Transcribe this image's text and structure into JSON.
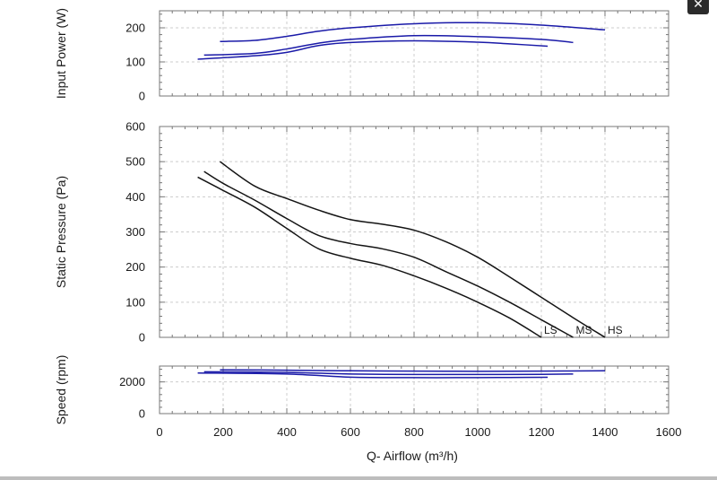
{
  "ui": {
    "close_symbol": "✕"
  },
  "colors": {
    "power_curve": "#1a1aa8",
    "pressure_curve": "#141414",
    "speed_curve": "#1a1aa8",
    "frame": "#777777",
    "grid": "#cccccc"
  },
  "chart_data": [
    {
      "id": "input-power",
      "type": "line",
      "xlabel": "",
      "ylabel": "Input Power (W)",
      "xlim": [
        0,
        1600
      ],
      "ylim": [
        0,
        250
      ],
      "yticks": [
        0,
        100,
        200
      ],
      "grid": true,
      "series": [
        {
          "name": "HS",
          "x": [
            190,
            300,
            400,
            500,
            600,
            800,
            1000,
            1200,
            1400
          ],
          "y": [
            160,
            163,
            175,
            190,
            200,
            212,
            215,
            208,
            194
          ]
        },
        {
          "name": "MS",
          "x": [
            140,
            300,
            400,
            500,
            600,
            800,
            1000,
            1200,
            1300
          ],
          "y": [
            120,
            125,
            138,
            155,
            166,
            177,
            174,
            166,
            157
          ]
        },
        {
          "name": "LS",
          "x": [
            120,
            300,
            400,
            500,
            600,
            800,
            1000,
            1100,
            1220
          ],
          "y": [
            108,
            118,
            128,
            148,
            157,
            162,
            158,
            153,
            146
          ]
        }
      ]
    },
    {
      "id": "static-pressure",
      "type": "line",
      "xlabel": "",
      "ylabel": "Static Pressure (Pa)",
      "xlim": [
        0,
        1600
      ],
      "ylim": [
        0,
        600
      ],
      "yticks": [
        0,
        100,
        200,
        300,
        400,
        500,
        600
      ],
      "grid": true,
      "series": [
        {
          "name": "HS",
          "x": [
            190,
            300,
            400,
            500,
            600,
            700,
            800,
            900,
            1000,
            1100,
            1200,
            1300,
            1400
          ],
          "y": [
            500,
            430,
            395,
            362,
            335,
            322,
            305,
            272,
            228,
            172,
            114,
            56,
            0
          ]
        },
        {
          "name": "MS",
          "x": [
            140,
            200,
            300,
            400,
            500,
            600,
            700,
            800,
            900,
            1000,
            1100,
            1200,
            1300
          ],
          "y": [
            472,
            438,
            390,
            338,
            290,
            267,
            252,
            228,
            187,
            146,
            100,
            50,
            0
          ]
        },
        {
          "name": "LS",
          "x": [
            120,
            200,
            300,
            400,
            500,
            600,
            700,
            800,
            900,
            1000,
            1100,
            1200
          ],
          "y": [
            456,
            418,
            370,
            310,
            252,
            225,
            205,
            175,
            140,
            100,
            55,
            0
          ]
        }
      ],
      "annotations": [
        "LS",
        "MS",
        "HS"
      ]
    },
    {
      "id": "speed",
      "type": "line",
      "xlabel": "Q- Airflow (m³/h)",
      "ylabel": "Speed (rpm)",
      "xlim": [
        0,
        1600
      ],
      "ylim": [
        0,
        3000
      ],
      "yticks": [
        0,
        2000
      ],
      "xticks": [
        0,
        200,
        400,
        600,
        800,
        1000,
        1200,
        1400,
        1600
      ],
      "grid": true,
      "series": [
        {
          "name": "HS",
          "x": [
            190,
            400,
            600,
            800,
            1000,
            1200,
            1400
          ],
          "y": [
            2760,
            2740,
            2700,
            2680,
            2670,
            2680,
            2700
          ]
        },
        {
          "name": "MS",
          "x": [
            140,
            400,
            600,
            800,
            1000,
            1200,
            1300
          ],
          "y": [
            2640,
            2600,
            2500,
            2470,
            2470,
            2480,
            2500
          ]
        },
        {
          "name": "LS",
          "x": [
            120,
            400,
            600,
            800,
            1000,
            1100,
            1220
          ],
          "y": [
            2560,
            2500,
            2300,
            2270,
            2270,
            2280,
            2290
          ]
        }
      ]
    }
  ]
}
